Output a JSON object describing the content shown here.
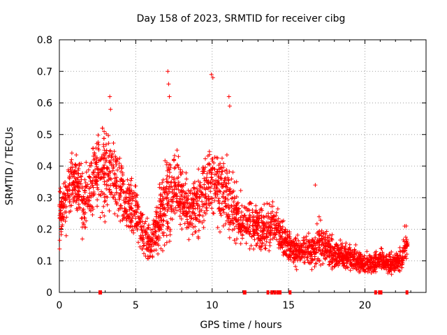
{
  "chart_data": {
    "type": "scatter",
    "title": "Day 158 of 2023, SRMTID for receiver cibg",
    "xlabel": "GPS time / hours",
    "ylabel": "SRMTID / TECUs",
    "xlim": [
      0,
      24
    ],
    "ylim": [
      0,
      0.8
    ],
    "x_ticks": [
      0,
      5,
      10,
      15,
      20
    ],
    "x_tick_labels": [
      "0",
      "5",
      "10",
      "15",
      "20"
    ],
    "y_ticks": [
      0,
      0.1,
      0.2,
      0.3,
      0.4,
      0.5,
      0.6,
      0.7,
      0.8
    ],
    "y_tick_labels": [
      "0",
      "0.1",
      "0.2",
      "0.3",
      "0.4",
      "0.5",
      "0.6",
      "0.7",
      "0.8"
    ],
    "grid": true,
    "marker": "+",
    "marker_color": "#ff0000",
    "envelope": {
      "x": [
        0.0,
        0.5,
        1.0,
        1.5,
        2.0,
        2.5,
        3.0,
        3.5,
        4.0,
        4.5,
        5.0,
        5.5,
        6.0,
        6.5,
        7.0,
        7.5,
        8.0,
        8.5,
        9.0,
        9.5,
        10.0,
        10.5,
        11.0,
        11.5,
        12.0,
        12.5,
        13.0,
        13.5,
        14.0,
        14.5,
        15.0,
        15.5,
        16.0,
        16.5,
        17.0,
        17.5,
        18.0,
        18.5,
        19.0,
        19.5,
        20.0,
        20.5,
        21.0,
        21.5,
        22.0,
        22.5,
        22.7
      ],
      "center": [
        0.25,
        0.3,
        0.36,
        0.3,
        0.32,
        0.38,
        0.38,
        0.36,
        0.32,
        0.28,
        0.26,
        0.18,
        0.15,
        0.22,
        0.28,
        0.34,
        0.3,
        0.26,
        0.28,
        0.32,
        0.36,
        0.33,
        0.3,
        0.26,
        0.22,
        0.22,
        0.2,
        0.2,
        0.22,
        0.18,
        0.14,
        0.13,
        0.14,
        0.13,
        0.16,
        0.14,
        0.12,
        0.12,
        0.11,
        0.1,
        0.09,
        0.09,
        0.1,
        0.09,
        0.09,
        0.11,
        0.16
      ],
      "spread": [
        0.08,
        0.08,
        0.08,
        0.1,
        0.08,
        0.12,
        0.13,
        0.11,
        0.09,
        0.08,
        0.07,
        0.05,
        0.05,
        0.07,
        0.13,
        0.11,
        0.09,
        0.08,
        0.09,
        0.1,
        0.12,
        0.1,
        0.09,
        0.08,
        0.07,
        0.06,
        0.06,
        0.06,
        0.06,
        0.05,
        0.05,
        0.04,
        0.04,
        0.04,
        0.07,
        0.04,
        0.04,
        0.04,
        0.04,
        0.03,
        0.03,
        0.03,
        0.03,
        0.03,
        0.03,
        0.04,
        0.04
      ]
    },
    "spikes": [
      {
        "x": 3.3,
        "y": 0.62
      },
      {
        "x": 3.35,
        "y": 0.58
      },
      {
        "x": 7.1,
        "y": 0.7
      },
      {
        "x": 7.15,
        "y": 0.66
      },
      {
        "x": 7.2,
        "y": 0.62
      },
      {
        "x": 9.95,
        "y": 0.69
      },
      {
        "x": 10.05,
        "y": 0.68
      },
      {
        "x": 11.1,
        "y": 0.62
      },
      {
        "x": 11.15,
        "y": 0.59
      },
      {
        "x": 16.75,
        "y": 0.34
      },
      {
        "x": 22.6,
        "y": 0.21
      }
    ],
    "zero_marks_x": [
      2.65,
      2.7,
      12.1,
      12.15,
      13.65,
      13.9,
      14.1,
      14.3,
      14.45,
      15.1,
      20.7,
      20.95,
      21.05,
      22.75
    ],
    "series": [
      {
        "name": "SRMTID",
        "x_range": [
          0,
          22.8
        ],
        "point_count": 2800
      }
    ]
  }
}
